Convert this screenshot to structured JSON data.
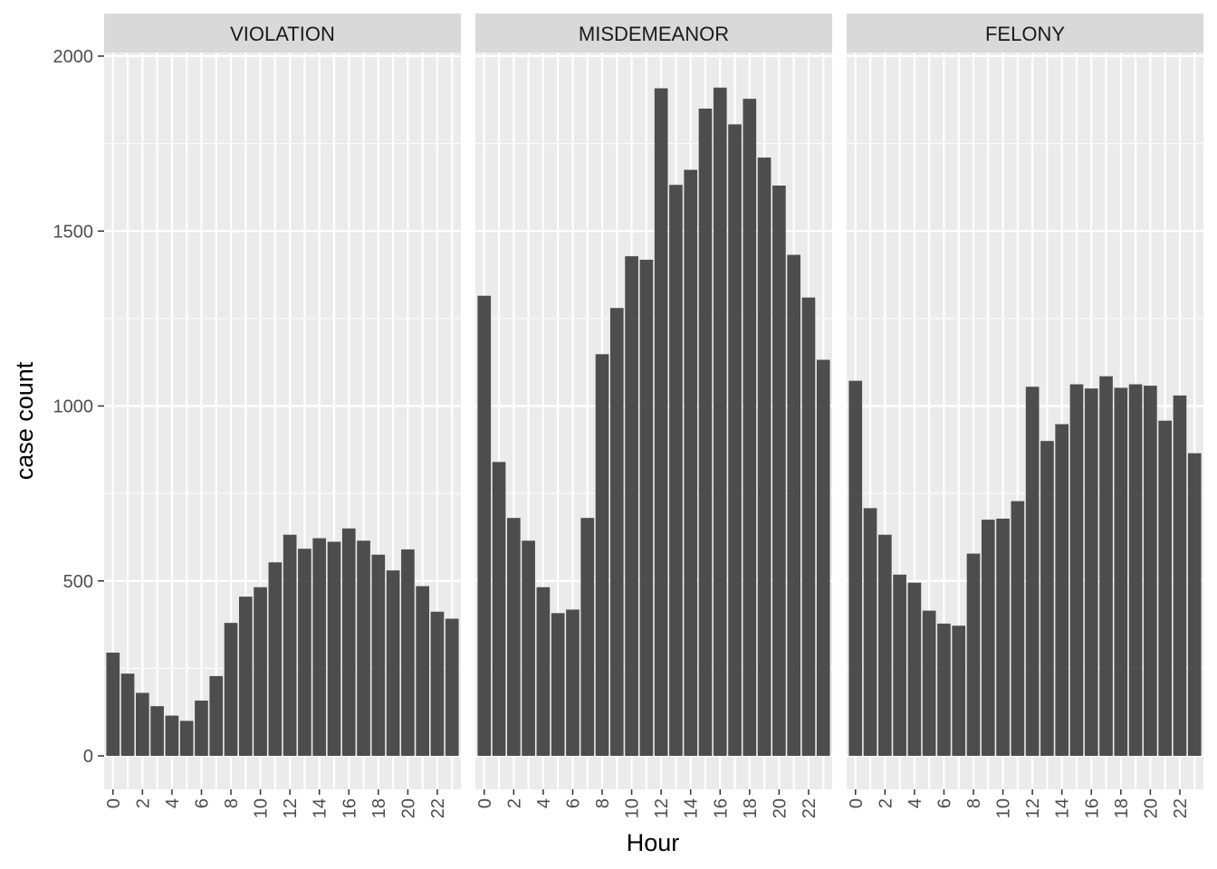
{
  "chart_data": {
    "type": "bar",
    "facet_variable": "offense level",
    "xlabel": "Hour",
    "ylabel": "case count",
    "ylim": [
      0,
      2000
    ],
    "y_ticks": [
      0,
      500,
      1000,
      1500,
      2000
    ],
    "y_tick_labels": [
      "0",
      "500",
      "1000",
      "1500",
      "2000"
    ],
    "x_ticks": [
      0,
      2,
      4,
      6,
      8,
      10,
      12,
      14,
      16,
      18,
      20,
      22
    ],
    "x_tick_labels": [
      "0",
      "2",
      "4",
      "6",
      "8",
      "10",
      "12",
      "14",
      "16",
      "18",
      "20",
      "22"
    ],
    "x": [
      0,
      1,
      2,
      3,
      4,
      5,
      6,
      7,
      8,
      9,
      10,
      11,
      12,
      13,
      14,
      15,
      16,
      17,
      18,
      19,
      20,
      21,
      22,
      23
    ],
    "grid": true,
    "bar_color": "#4d4d4d",
    "panel_background": "#ebebeb",
    "strip_background": "#d9d9d9",
    "panels": [
      {
        "title": "VIOLATION",
        "values": [
          295,
          235,
          180,
          142,
          115,
          100,
          158,
          228,
          380,
          455,
          482,
          553,
          632,
          592,
          622,
          612,
          650,
          615,
          575,
          530,
          590,
          485,
          412,
          392
        ]
      },
      {
        "title": "MISDEMEANOR",
        "values": [
          1315,
          840,
          680,
          615,
          482,
          408,
          418,
          680,
          1148,
          1280,
          1428,
          1418,
          1908,
          1632,
          1675,
          1850,
          1910,
          1805,
          1878,
          1710,
          1630,
          1432,
          1310,
          1132
        ]
      },
      {
        "title": "FELONY",
        "values": [
          1072,
          708,
          632,
          518,
          495,
          415,
          378,
          372,
          578,
          675,
          678,
          728,
          1055,
          900,
          948,
          1062,
          1050,
          1085,
          1052,
          1062,
          1058,
          958,
          1030,
          865
        ]
      }
    ]
  }
}
